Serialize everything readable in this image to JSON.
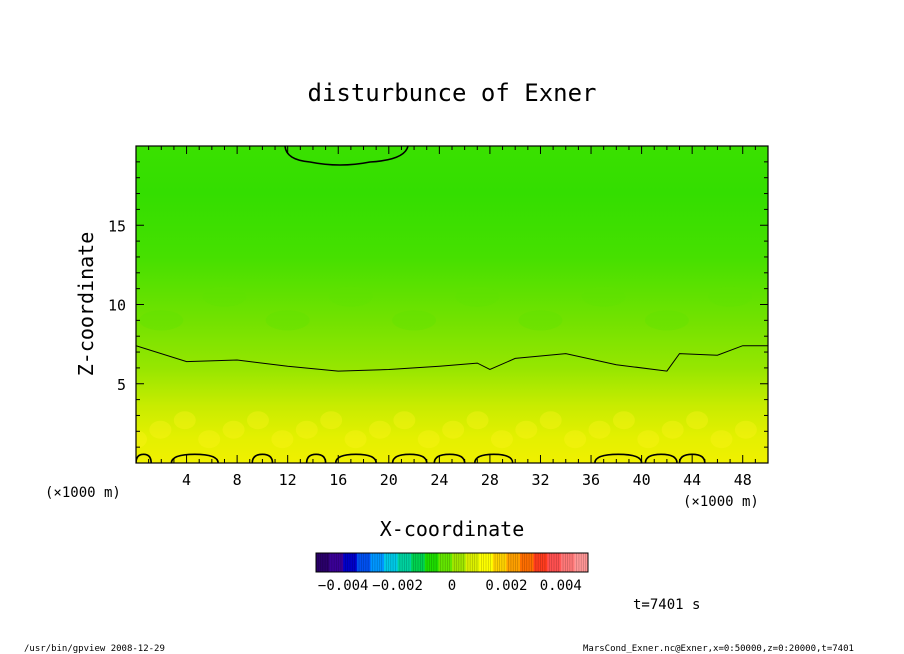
{
  "chart_data": {
    "type": "heatmap",
    "title": "disturbunce of Exner",
    "xlabel": "X-coordinate",
    "ylabel": "Z-coordinate",
    "x_unit": "(×1000 m)",
    "x_unit_right": "(×1000 m)",
    "xlim": [
      0,
      50
    ],
    "ylim": [
      0,
      20
    ],
    "x_ticks": [
      4,
      8,
      12,
      16,
      20,
      24,
      28,
      32,
      36,
      40,
      44,
      48
    ],
    "x_tick_labels": [
      "4",
      "8",
      "12",
      "16",
      "20",
      "24",
      "28",
      "32",
      "36",
      "40",
      "44",
      "48"
    ],
    "y_ticks": [
      5,
      10,
      15
    ],
    "y_tick_labels": [
      "5",
      "10",
      "15"
    ],
    "colorbar": {
      "range": [
        -0.005,
        0.005
      ],
      "tick_labels": [
        "−0.004",
        "−0.002",
        "0",
        "0.002",
        "0.004"
      ],
      "tick_values": [
        -0.004,
        -0.002,
        0,
        0.002,
        0.004
      ],
      "colors": [
        "#2a006a",
        "#3a0096",
        "#0000c8",
        "#0050f0",
        "#0096ff",
        "#00c8e6",
        "#00d2a0",
        "#00d250",
        "#1edc00",
        "#64e600",
        "#a0e600",
        "#dcf000",
        "#ffff00",
        "#ffd200",
        "#ffa000",
        "#ff6e00",
        "#ff3c1e",
        "#ff5050",
        "#ff7878",
        "#ff9696"
      ]
    },
    "contours": [
      {
        "level": 0,
        "z_by_x": [
          [
            0,
            7.4
          ],
          [
            4,
            6.4
          ],
          [
            8,
            6.5
          ],
          [
            12,
            6.1
          ],
          [
            16,
            5.8
          ],
          [
            20,
            5.9
          ],
          [
            24,
            6.1
          ],
          [
            27,
            6.3
          ],
          [
            28,
            5.9
          ],
          [
            30,
            6.6
          ],
          [
            34,
            6.9
          ],
          [
            38,
            6.2
          ],
          [
            42,
            5.8
          ],
          [
            43,
            6.9
          ],
          [
            46,
            6.8
          ],
          [
            48,
            7.4
          ],
          [
            50,
            7.4
          ]
        ]
      }
    ],
    "field_description_levels": [
      {
        "z": 0,
        "value": 0.0011
      },
      {
        "z": 5,
        "value": 0.0004
      },
      {
        "z": 10,
        "value": -0.0002
      },
      {
        "z": 15,
        "value": -0.0005
      },
      {
        "z": 20,
        "value": -0.0006
      }
    ],
    "time_label": "t=7401 s"
  },
  "footer": {
    "left": "/usr/bin/gpview  2008-12-29",
    "right": "MarsCond_Exner.nc@Exner,x=0:50000,z=0:20000,t=7401"
  }
}
